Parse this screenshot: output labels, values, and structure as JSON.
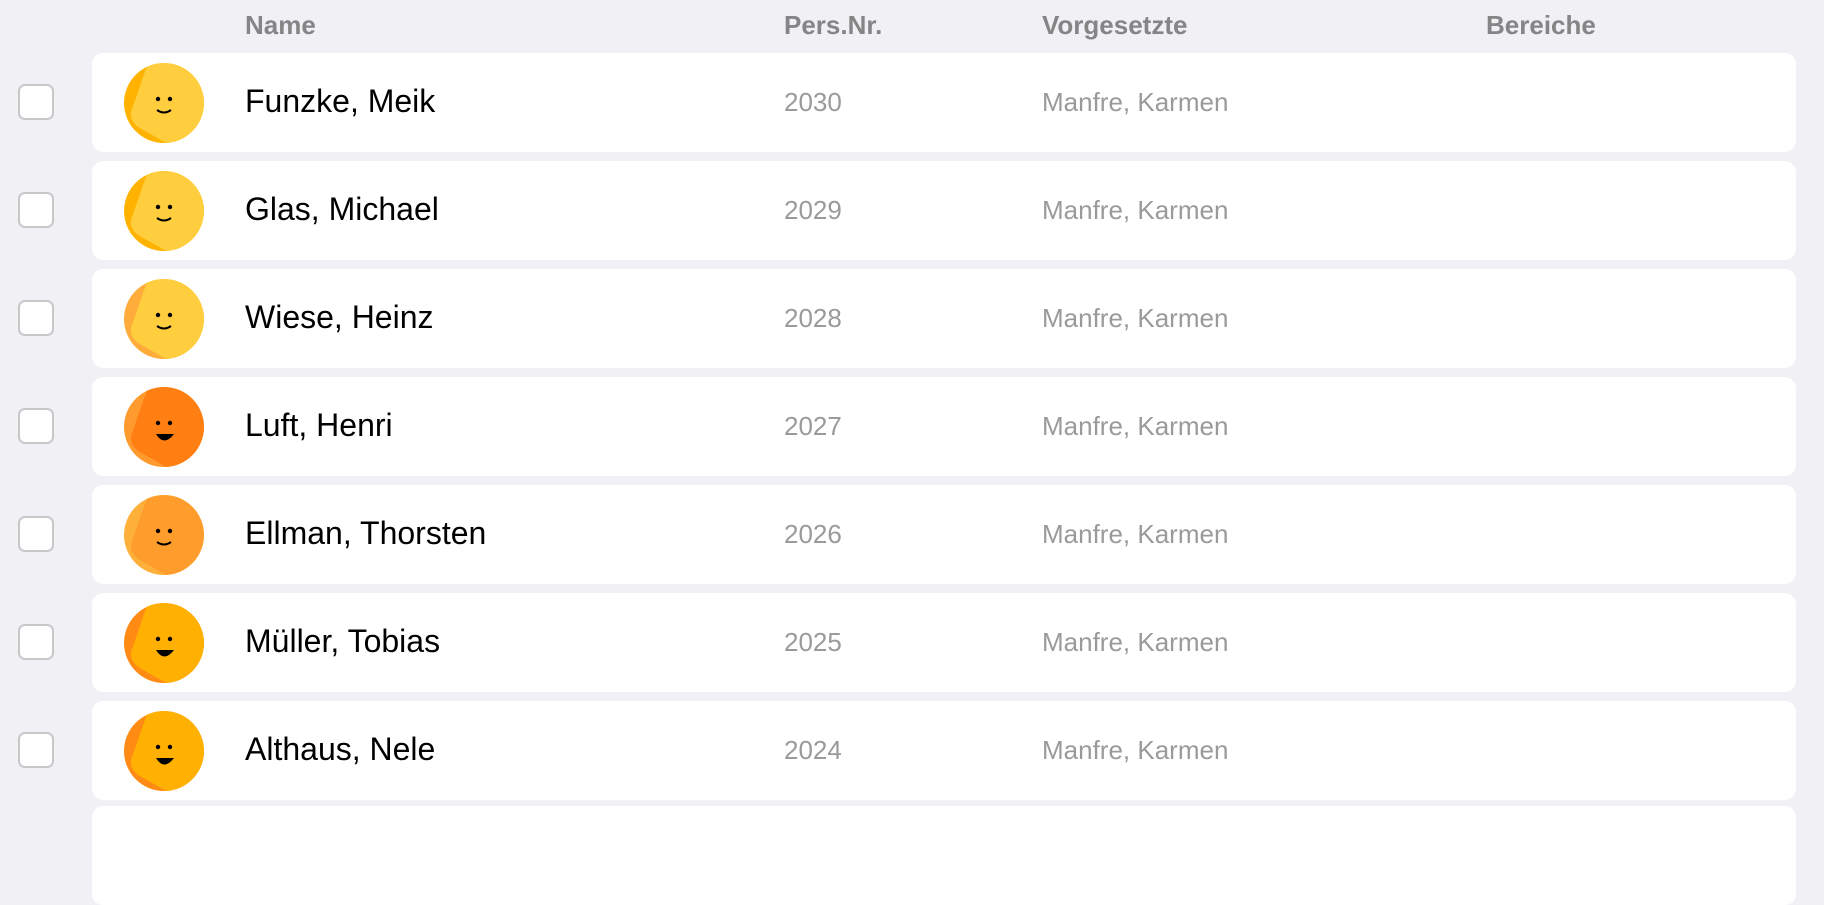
{
  "header": {
    "name": "Name",
    "pers_nr": "Pers.Nr.",
    "vorgesetzte": "Vorgesetzte",
    "bereiche": "Bereiche"
  },
  "rows": [
    {
      "name": "Funzke, Meik",
      "pers_nr": "2030",
      "vorgesetzte": "Manfre, Karmen",
      "bereiche": "",
      "avatar": {
        "base": "#ffce3e",
        "accent": "#ffb300",
        "mood": "smile"
      }
    },
    {
      "name": "Glas, Michael",
      "pers_nr": "2029",
      "vorgesetzte": "Manfre, Karmen",
      "bereiche": "",
      "avatar": {
        "base": "#ffce3e",
        "accent": "#ffb300",
        "mood": "smile"
      }
    },
    {
      "name": "Wiese, Heinz",
      "pers_nr": "2028",
      "vorgesetzte": "Manfre, Karmen",
      "bereiche": "",
      "avatar": {
        "base": "#ffce3e",
        "accent": "#ffac3a",
        "mood": "smile"
      }
    },
    {
      "name": "Luft, Henri",
      "pers_nr": "2027",
      "vorgesetzte": "Manfre, Karmen",
      "bereiche": "",
      "avatar": {
        "base": "#ff7f13",
        "accent": "#ff9a2e",
        "mood": "grin"
      }
    },
    {
      "name": "Ellman, Thorsten",
      "pers_nr": "2026",
      "vorgesetzte": "Manfre, Karmen",
      "bereiche": "",
      "avatar": {
        "base": "#ff9d2c",
        "accent": "#ffb03a",
        "mood": "smile"
      }
    },
    {
      "name": "Müller, Tobias",
      "pers_nr": "2025",
      "vorgesetzte": "Manfre, Karmen",
      "bereiche": "",
      "avatar": {
        "base": "#ffb000",
        "accent": "#ff8a14",
        "mood": "grin"
      }
    },
    {
      "name": "Althaus, Nele",
      "pers_nr": "2024",
      "vorgesetzte": "Manfre, Karmen",
      "bereiche": "",
      "avatar": {
        "base": "#ffb000",
        "accent": "#ff8a14",
        "mood": "grin"
      }
    }
  ]
}
